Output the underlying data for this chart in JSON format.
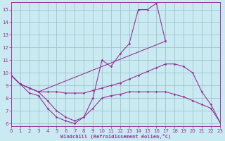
{
  "background_color": "#c8eaf0",
  "grid_color": "#99bbcc",
  "line_color": "#993399",
  "xlim": [
    0,
    23
  ],
  "ylim": [
    5.8,
    15.6
  ],
  "xticks": [
    0,
    1,
    2,
    3,
    4,
    5,
    6,
    7,
    8,
    9,
    10,
    11,
    12,
    13,
    14,
    15,
    16,
    17,
    18,
    19,
    20,
    21,
    22,
    23
  ],
  "yticks": [
    6,
    7,
    8,
    9,
    10,
    11,
    12,
    13,
    14,
    15
  ],
  "xlabel": "Windchill (Refroidissement éolien,°C)",
  "lines": [
    {
      "x": [
        0,
        1,
        2,
        3,
        4,
        5,
        6,
        7,
        8,
        9,
        10,
        11,
        12,
        13,
        14,
        15,
        16,
        17,
        18,
        19,
        20,
        21,
        22,
        23
      ],
      "y": [
        9.8,
        9.1,
        8.8,
        8.5,
        8.5,
        8.5,
        8.4,
        8.4,
        8.4,
        8.6,
        8.8,
        9.0,
        9.2,
        9.5,
        9.8,
        10.1,
        10.4,
        10.7,
        10.7,
        10.5,
        10.0,
        8.5,
        7.5,
        6.1
      ]
    },
    {
      "x": [
        0,
        1,
        2,
        3,
        4,
        5,
        6,
        7,
        8,
        9,
        10,
        11,
        12,
        13,
        14,
        15,
        16,
        17
      ],
      "y": [
        9.8,
        9.1,
        8.8,
        8.5,
        7.8,
        7.0,
        6.5,
        6.2,
        6.5,
        8.0,
        11.0,
        10.5,
        11.5,
        12.3,
        15.0,
        15.0,
        15.5,
        12.5
      ]
    },
    {
      "x": [
        0,
        1,
        2,
        3,
        17
      ],
      "y": [
        9.8,
        9.1,
        8.8,
        8.5,
        12.5
      ]
    },
    {
      "x": [
        0,
        1,
        2,
        3,
        4,
        5,
        6,
        7,
        8,
        9,
        10,
        11,
        12,
        13,
        14,
        15,
        16,
        17,
        18,
        19,
        20,
        21,
        22,
        23
      ],
      "y": [
        9.8,
        9.1,
        8.4,
        8.2,
        7.2,
        6.5,
        6.2,
        6.0,
        6.5,
        7.2,
        8.0,
        8.2,
        8.3,
        8.5,
        8.5,
        8.5,
        8.5,
        8.5,
        8.3,
        8.1,
        7.8,
        7.5,
        7.2,
        6.1
      ]
    }
  ]
}
